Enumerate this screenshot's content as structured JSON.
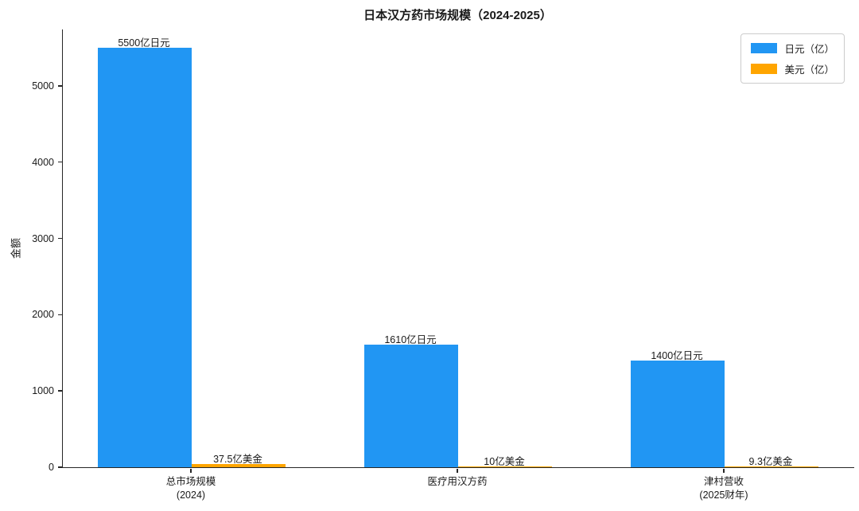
{
  "figure": {
    "background": "#ffffff",
    "text_color": "#1a1a1a",
    "axis_color": "#262626"
  },
  "chart_data": {
    "type": "bar",
    "title": "日本汉方药市场规模（2024-2025）",
    "xlabel": "",
    "ylabel": "金额",
    "categories": [
      "总市场规模\n(2024)",
      "医疗用汉方药",
      "津村营收\n(2025财年)"
    ],
    "series": [
      {
        "name": "日元（亿）",
        "color": "#2196F3",
        "values": [
          5500,
          1610,
          1400
        ],
        "data_labels": [
          "5500亿日元",
          "1610亿日元",
          "1400亿日元"
        ]
      },
      {
        "name": "美元（亿）",
        "color": "#FFA500",
        "values": [
          37.5,
          10,
          9.3
        ],
        "data_labels": [
          "37.5亿美金",
          "10亿美金",
          "9.3亿美金"
        ]
      }
    ],
    "ylim": [
      0,
      5740
    ],
    "yticks": [
      0,
      1000,
      2000,
      3000,
      4000,
      5000
    ],
    "grid": false,
    "legend_position": "upper right"
  }
}
